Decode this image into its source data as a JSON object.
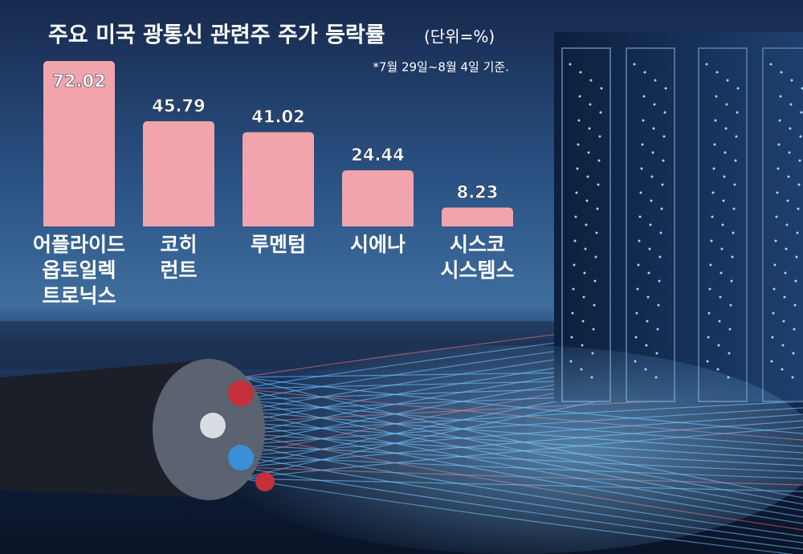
{
  "chart_data": {
    "type": "bar",
    "title": "주요 미국 광통신 관련주 주가 등락률",
    "unit": "(단위=%)",
    "note": "*7월 29일~8월 4일 기준.",
    "categories": [
      [
        "어플라이드",
        "옵토일렉",
        "트로닉스"
      ],
      [
        "코히",
        "런트"
      ],
      [
        "루멘텀"
      ],
      [
        "시에나"
      ],
      [
        "시스코",
        "시스템스"
      ]
    ],
    "values": [
      72.02,
      45.79,
      41.02,
      24.44,
      8.23
    ],
    "color": "#f2a4ad"
  }
}
